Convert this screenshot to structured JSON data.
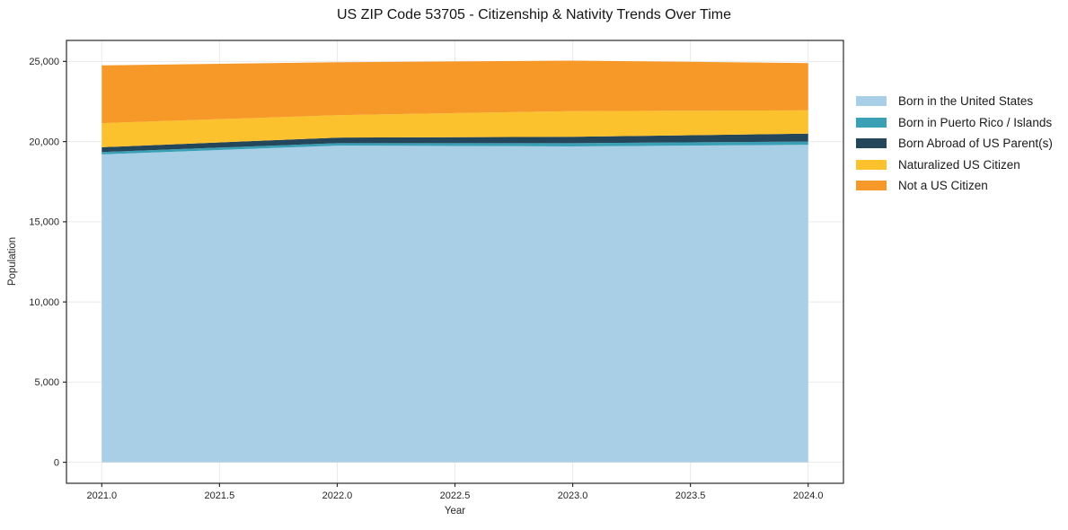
{
  "title": "US ZIP Code 53705 - Citizenship & Nativity Trends Over Time",
  "chart_data": {
    "type": "area",
    "stacked": true,
    "title": "US ZIP Code 53705 - Citizenship & Nativity Trends Over Time",
    "xlabel": "Year",
    "ylabel": "Population",
    "x": [
      2021,
      2022,
      2023,
      2024
    ],
    "series": [
      {
        "name": "Born in the United States",
        "color": "#A8CFE6",
        "values": [
          19200,
          19750,
          19700,
          19800
        ]
      },
      {
        "name": "Born in Puerto Rico / Islands",
        "color": "#3AA0B5",
        "values": [
          150,
          150,
          200,
          200
        ]
      },
      {
        "name": "Born Abroad of US Parent(s)",
        "color": "#24465A",
        "values": [
          300,
          350,
          400,
          500
        ]
      },
      {
        "name": "Naturalized US Citizen",
        "color": "#FCC22D",
        "values": [
          1500,
          1400,
          1600,
          1450
        ]
      },
      {
        "name": "Not a US Citizen",
        "color": "#F79928",
        "values": [
          3600,
          3300,
          3150,
          2950
        ]
      }
    ],
    "totals": [
      24750,
      24950,
      25050,
      24900
    ],
    "xlim": [
      2020.85,
      2024.15
    ],
    "ylim": [
      -1310,
      26310
    ],
    "xticks": {
      "values": [
        2021.0,
        2021.5,
        2022.0,
        2022.5,
        2023.0,
        2023.5,
        2024.0
      ],
      "labels": [
        "2021.0",
        "2021.5",
        "2022.0",
        "2022.5",
        "2023.0",
        "2023.5",
        "2024.0"
      ]
    },
    "yticks": {
      "values": [
        0,
        5000,
        10000,
        15000,
        20000,
        25000
      ],
      "labels": [
        "0",
        "5,000",
        "10,000",
        "15,000",
        "20,000",
        "25,000"
      ]
    },
    "grid": true,
    "legend_position": "right-outside"
  },
  "colors": {
    "background": "#ffffff",
    "spine": "#2a2a2a",
    "grid": "#e9e9e9",
    "tick_text": "#262626",
    "title_text": "#151515"
  }
}
